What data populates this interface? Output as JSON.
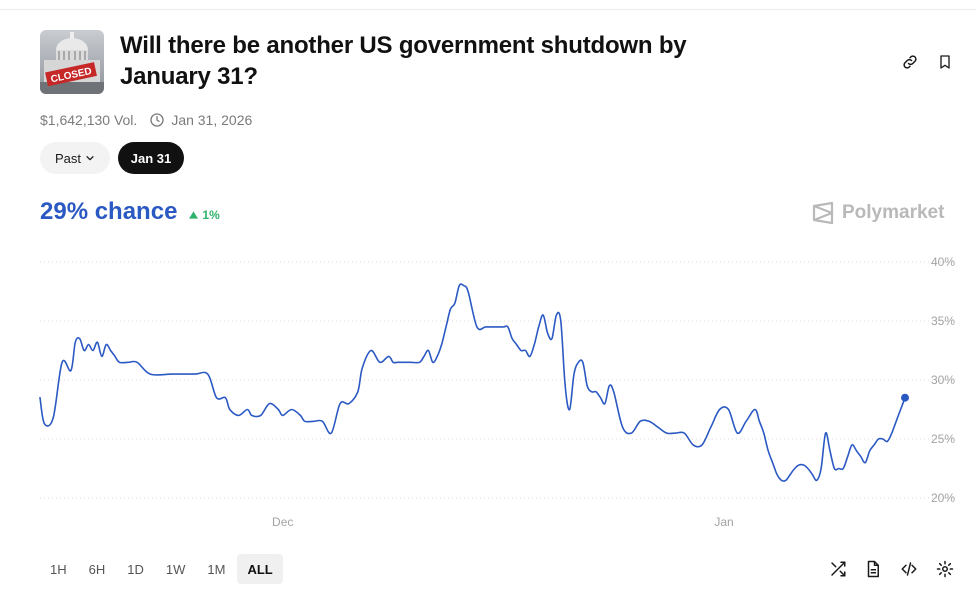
{
  "market": {
    "thumbnail_icon": "capitol-closed-thumbnail",
    "thumbnail_text": "CLOSED",
    "title": "Will there be another US government shutdown by January 31?",
    "volume": "$1,642,130 Vol.",
    "end_date": "Jan 31, 2026"
  },
  "header_actions": {
    "link_icon": "link-icon",
    "bookmark_icon": "bookmark-icon"
  },
  "date_filter": {
    "past_label": "Past",
    "selected_label": "Jan 31"
  },
  "odds": {
    "chance": "29% chance",
    "change": "1%",
    "change_direction": "up",
    "change_color": "#2fb36c"
  },
  "brand": {
    "name": "Polymarket"
  },
  "chart_data": {
    "type": "line",
    "line_color": "#2b59c3",
    "y_ticks": [
      "40%",
      "35%",
      "30%",
      "25%",
      "20%"
    ],
    "y_tick_values": [
      40,
      35,
      30,
      25,
      20
    ],
    "ylim": [
      20,
      40
    ],
    "x_ticks": [
      {
        "label": "Dec",
        "x": 55
      },
      {
        "label": "Jan",
        "x": 155
      }
    ],
    "xlim": [
      0,
      196
    ],
    "grid": "dotted horizontal",
    "series": [
      {
        "x": [
          0,
          1,
          3,
          5,
          7,
          8,
          9,
          10,
          11,
          12,
          13,
          14,
          15,
          16,
          17,
          18,
          20,
          22,
          25,
          30,
          35,
          38,
          40,
          42,
          43,
          45,
          47,
          48,
          50,
          52,
          54,
          55,
          57,
          59,
          60,
          62,
          64,
          66,
          68,
          70,
          72,
          73,
          75,
          77,
          79,
          80,
          81,
          83,
          84,
          86,
          87,
          88,
          89,
          90,
          91,
          92,
          93,
          94,
          95,
          96,
          97,
          99,
          101,
          103,
          105,
          106,
          107,
          108,
          109,
          110,
          111,
          112,
          113,
          114,
          115,
          116,
          117,
          118,
          119,
          120,
          121,
          122,
          123,
          124,
          125,
          126,
          127,
          128,
          129,
          130,
          132,
          134,
          136,
          138,
          140,
          142,
          144,
          146,
          148,
          150,
          152,
          154,
          156,
          158,
          160,
          162,
          163,
          164,
          165,
          166,
          167,
          168,
          169,
          170,
          171,
          172,
          173,
          174,
          175,
          176,
          177,
          178,
          179,
          180,
          181,
          182,
          183,
          184,
          185,
          186,
          187,
          188,
          189,
          190,
          191,
          192,
          193,
          194,
          195,
          196
        ],
        "y": [
          28.5,
          26.3,
          26.8,
          31.5,
          30.8,
          33.2,
          33.5,
          32.5,
          33.0,
          32.5,
          33.2,
          32.0,
          33.0,
          32.5,
          32.0,
          31.5,
          31.5,
          31.5,
          30.5,
          30.5,
          30.5,
          30.5,
          28.5,
          28.5,
          27.5,
          27.0,
          27.5,
          27.0,
          27.0,
          28.0,
          27.5,
          27.0,
          27.5,
          27.0,
          26.5,
          26.5,
          26.5,
          25.5,
          28.0,
          28.0,
          29.0,
          31.0,
          32.5,
          31.5,
          32.0,
          31.5,
          31.5,
          31.5,
          31.5,
          31.5,
          32.0,
          32.5,
          31.5,
          32.0,
          33.0,
          34.5,
          36.0,
          36.5,
          38.0,
          38.0,
          37.5,
          34.5,
          34.5,
          34.5,
          34.5,
          34.5,
          33.5,
          33.0,
          32.5,
          32.5,
          32.0,
          33.0,
          34.5,
          35.5,
          34.0,
          33.5,
          35.5,
          35.0,
          29.5,
          27.5,
          30.5,
          31.5,
          31.5,
          29.5,
          29.0,
          29.0,
          28.5,
          28.0,
          29.5,
          29.0,
          26.0,
          25.5,
          26.5,
          26.5,
          26.0,
          25.5,
          25.5,
          25.5,
          24.5,
          24.5,
          26.0,
          27.5,
          27.5,
          25.5,
          26.5,
          27.5,
          26.5,
          25.5,
          24.0,
          23.0,
          22.0,
          21.5,
          21.5,
          22.0,
          22.5,
          22.8,
          22.8,
          22.5,
          22.0,
          21.5,
          22.5,
          25.5,
          24.0,
          22.5,
          22.5,
          22.5,
          23.5,
          24.5,
          24.0,
          23.5,
          23.0,
          24.0,
          24.5,
          25.0,
          25.0,
          24.8,
          25.5,
          26.5,
          27.5,
          28.5
        ]
      }
    ]
  },
  "time_ranges": [
    {
      "label": "1H",
      "active": false
    },
    {
      "label": "6H",
      "active": false
    },
    {
      "label": "1D",
      "active": false
    },
    {
      "label": "1W",
      "active": false
    },
    {
      "label": "1M",
      "active": false
    },
    {
      "label": "ALL",
      "active": true
    }
  ],
  "chart_tools": [
    "shuffle-icon",
    "document-icon",
    "embed-code-icon",
    "settings-gear-icon"
  ]
}
